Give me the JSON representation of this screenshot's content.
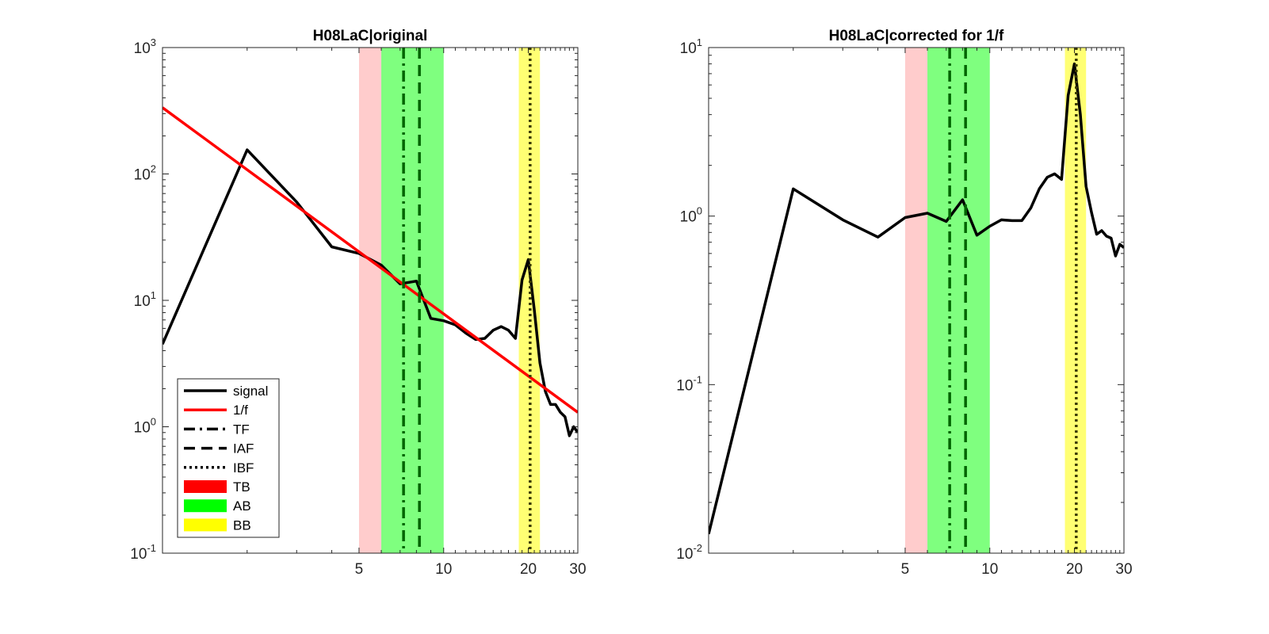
{
  "chart_data": [
    {
      "type": "line",
      "title": "H08LaC|original",
      "xscale": "log",
      "yscale": "log",
      "xlim": [
        1,
        30
      ],
      "ylim": [
        0.1,
        1000
      ],
      "xticks": [
        5,
        10,
        20,
        30
      ],
      "xtick_labels": [
        "5",
        "10",
        "20",
        "30"
      ],
      "yticks": [
        {
          "value": 0.1,
          "base": "10",
          "exp": "-1"
        },
        {
          "value": 1,
          "base": "10",
          "exp": "0"
        },
        {
          "value": 10,
          "base": "10",
          "exp": "1"
        },
        {
          "value": 100,
          "base": "10",
          "exp": "2"
        },
        {
          "value": 1000,
          "base": "10",
          "exp": "3"
        }
      ],
      "bands": [
        {
          "name": "TB",
          "range": [
            5.0,
            6.0
          ],
          "color": "#ff0000",
          "opacity": 0.2
        },
        {
          "name": "AB",
          "range": [
            6.0,
            10.0
          ],
          "color": "#00ff00",
          "opacity": 0.5
        },
        {
          "name": "BB",
          "range": [
            18.5,
            22.0
          ],
          "color": "#ffff00",
          "opacity": 0.55
        }
      ],
      "vlines": [
        {
          "name": "TF",
          "x": 7.2,
          "style": "dashdot",
          "color": "#006400"
        },
        {
          "name": "IAF",
          "x": 8.2,
          "style": "dashed",
          "color": "#006400"
        },
        {
          "name": "IBF",
          "x": 20.3,
          "style": "dotted",
          "color": "#3a3a00"
        }
      ],
      "series": [
        {
          "name": "signal",
          "color": "#000000",
          "x": [
            1,
            2,
            3,
            4,
            5,
            6,
            7,
            8,
            9,
            10,
            11,
            12,
            13,
            14,
            15,
            16,
            17,
            18,
            19,
            20,
            21,
            22,
            23,
            24,
            25,
            26,
            27,
            28,
            29,
            30
          ],
          "y": [
            4.5,
            155,
            60,
            26.5,
            23.5,
            19,
            13.5,
            14.2,
            7.2,
            6.9,
            6.4,
            5.5,
            4.9,
            5.0,
            5.8,
            6.2,
            5.8,
            5.0,
            14.5,
            21,
            8.5,
            3.2,
            1.9,
            1.5,
            1.5,
            1.3,
            1.2,
            0.85,
            1.0,
            0.9
          ]
        },
        {
          "name": "1/f",
          "color": "#ff0000",
          "x": [
            1,
            30
          ],
          "y": [
            335,
            1.3
          ]
        }
      ],
      "legend": {
        "position": "lower-left",
        "entries": [
          {
            "label": "signal",
            "kind": "line",
            "style": "solid",
            "color": "#000000"
          },
          {
            "label": "1/f",
            "kind": "line",
            "style": "solid",
            "color": "#ff0000"
          },
          {
            "label": "TF",
            "kind": "line",
            "style": "dashdot",
            "color": "#000000"
          },
          {
            "label": "IAF",
            "kind": "line",
            "style": "dashed",
            "color": "#000000"
          },
          {
            "label": "IBF",
            "kind": "line",
            "style": "dotted",
            "color": "#000000"
          },
          {
            "label": "TB",
            "kind": "patch",
            "color": "#ff0000"
          },
          {
            "label": "AB",
            "kind": "patch",
            "color": "#00ff00"
          },
          {
            "label": "BB",
            "kind": "patch",
            "color": "#ffff00"
          }
        ]
      }
    },
    {
      "type": "line",
      "title": "H08LaC|corrected for 1/f",
      "xscale": "log",
      "yscale": "log",
      "xlim": [
        1,
        30
      ],
      "ylim": [
        0.01,
        10
      ],
      "xticks": [
        5,
        10,
        20,
        30
      ],
      "xtick_labels": [
        "5",
        "10",
        "20",
        "30"
      ],
      "yticks": [
        {
          "value": 0.01,
          "base": "10",
          "exp": "-2"
        },
        {
          "value": 0.1,
          "base": "10",
          "exp": "-1"
        },
        {
          "value": 1,
          "base": "10",
          "exp": "0"
        },
        {
          "value": 10,
          "base": "10",
          "exp": "1"
        }
      ],
      "bands": [
        {
          "name": "TB",
          "range": [
            5.0,
            6.0
          ],
          "color": "#ff0000",
          "opacity": 0.2
        },
        {
          "name": "AB",
          "range": [
            6.0,
            10.0
          ],
          "color": "#00ff00",
          "opacity": 0.5
        },
        {
          "name": "BB",
          "range": [
            18.5,
            22.0
          ],
          "color": "#ffff00",
          "opacity": 0.55
        }
      ],
      "vlines": [
        {
          "name": "TF",
          "x": 7.2,
          "style": "dashdot",
          "color": "#006400"
        },
        {
          "name": "IAF",
          "x": 8.2,
          "style": "dashed",
          "color": "#006400"
        },
        {
          "name": "IBF",
          "x": 20.3,
          "style": "dotted",
          "color": "#3a3a00"
        }
      ],
      "series": [
        {
          "name": "signal",
          "color": "#000000",
          "x": [
            1,
            2,
            3,
            4,
            5,
            6,
            7,
            8,
            9,
            10,
            11,
            12,
            13,
            14,
            15,
            16,
            17,
            18,
            19,
            20,
            21,
            22,
            23,
            24,
            25,
            26,
            27,
            28,
            29,
            30
          ],
          "y": [
            0.013,
            1.45,
            0.95,
            0.75,
            0.98,
            1.04,
            0.93,
            1.25,
            0.77,
            0.87,
            0.95,
            0.94,
            0.94,
            1.12,
            1.45,
            1.7,
            1.78,
            1.65,
            5.2,
            8.0,
            4.0,
            1.5,
            1.05,
            0.78,
            0.82,
            0.76,
            0.74,
            0.58,
            0.68,
            0.65
          ]
        }
      ]
    }
  ]
}
